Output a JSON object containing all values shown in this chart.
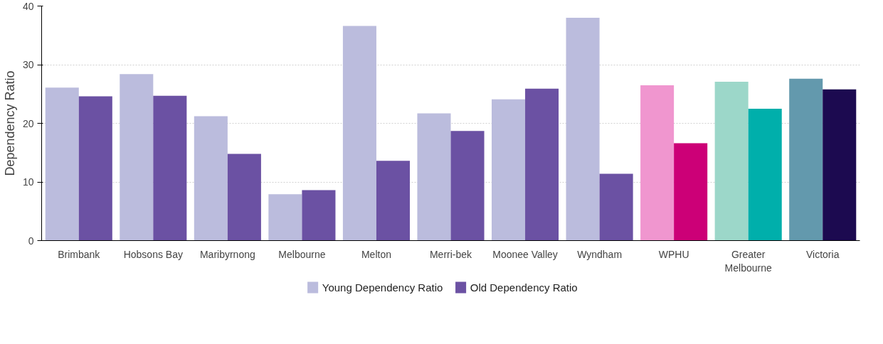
{
  "chart_data": {
    "type": "bar",
    "ylabel": "Dependency Ratio",
    "categories": [
      "Brimbank",
      "Hobsons Bay",
      "Maribyrnong",
      "Melbourne",
      "Melton",
      "Merri-bek",
      "Moonee Valley",
      "Wyndham",
      "WPHU",
      "Greater Melbourne",
      "Victoria"
    ],
    "series": [
      {
        "name": "Young Dependency Ratio",
        "color": "#bbbcdd",
        "colors": [
          "#bbbcdd",
          "#bbbcdd",
          "#bbbcdd",
          "#bbbcdd",
          "#bbbcdd",
          "#bbbcdd",
          "#bbbcdd",
          "#bbbcdd",
          "#f096cf",
          "#9cd7c9",
          "#6399ad"
        ],
        "values": [
          26.1,
          28.4,
          21.2,
          7.9,
          36.6,
          21.7,
          24.1,
          38.0,
          26.5,
          27.1,
          27.6
        ]
      },
      {
        "name": "Old Dependency Ratio",
        "color": "#6b51a3",
        "colors": [
          "#6b51a3",
          "#6b51a3",
          "#6b51a3",
          "#6b51a3",
          "#6b51a3",
          "#6b51a3",
          "#6b51a3",
          "#6b51a3",
          "#cc0077",
          "#00afab",
          "#1c0a50"
        ],
        "values": [
          24.6,
          24.7,
          14.8,
          8.6,
          13.6,
          18.7,
          25.9,
          11.4,
          16.6,
          22.5,
          25.8
        ]
      }
    ],
    "ylim": [
      0,
      40
    ],
    "yticks": [
      0,
      10,
      20,
      30,
      40
    ],
    "grid": "y",
    "legend": "bottom"
  }
}
